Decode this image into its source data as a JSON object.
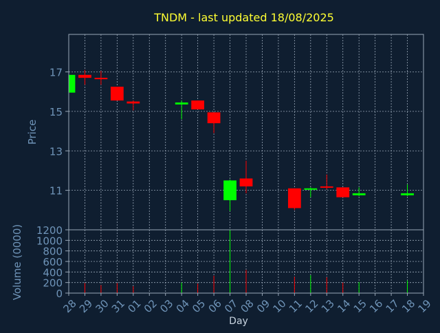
{
  "chart_data": [
    {
      "type": "candlestick",
      "title": "TNDM - last updated 18/08/2025",
      "ylabel": "Price",
      "xlabel": "Day",
      "ylim": [
        9,
        18.9
      ],
      "yticks": [
        11,
        13,
        15,
        17
      ],
      "grid": true,
      "up_color": "#00ff00",
      "down_color": "#ff0000",
      "candles": [
        {
          "day": "28",
          "open": 15.95,
          "high": 16.85,
          "low": 15.95,
          "close": 16.85
        },
        {
          "day": "29",
          "open": 16.85,
          "high": 17.1,
          "low": 16.35,
          "close": 16.7
        },
        {
          "day": "30",
          "open": 16.7,
          "high": 17.05,
          "low": 16.35,
          "close": 16.65
        },
        {
          "day": "31",
          "open": 16.25,
          "high": 16.25,
          "low": 15.55,
          "close": 15.55
        },
        {
          "day": "01",
          "open": 15.5,
          "high": 15.55,
          "low": 15.05,
          "close": 15.4
        },
        {
          "day": "04",
          "open": 15.35,
          "high": 15.55,
          "low": 14.6,
          "close": 15.45
        },
        {
          "day": "05",
          "open": 15.55,
          "high": 15.55,
          "low": 15.1,
          "close": 15.1
        },
        {
          "day": "06",
          "open": 14.95,
          "high": 14.95,
          "low": 13.9,
          "close": 14.4
        },
        {
          "day": "07",
          "open": 10.5,
          "high": 11.55,
          "low": 9.95,
          "close": 11.5
        },
        {
          "day": "08",
          "open": 11.6,
          "high": 12.5,
          "low": 10.85,
          "close": 11.2
        },
        {
          "day": "11",
          "open": 11.1,
          "high": 11.1,
          "low": 10.0,
          "close": 10.1
        },
        {
          "day": "12",
          "open": 11.05,
          "high": 11.15,
          "low": 10.65,
          "close": 11.1
        },
        {
          "day": "13",
          "open": 11.2,
          "high": 11.8,
          "low": 11.05,
          "close": 11.15
        },
        {
          "day": "14",
          "open": 11.15,
          "high": 11.15,
          "low": 10.65,
          "close": 10.65
        },
        {
          "day": "15",
          "open": 10.75,
          "high": 11.15,
          "low": 10.7,
          "close": 10.85
        },
        {
          "day": "18",
          "open": 10.75,
          "high": 11.3,
          "low": 10.7,
          "close": 10.85
        }
      ]
    },
    {
      "type": "bar",
      "ylabel": "Volume (0000)",
      "xlabel": "Day",
      "ylim": [
        0,
        1200
      ],
      "yticks": [
        0,
        200,
        400,
        600,
        800,
        1000,
        1200
      ],
      "grid": true,
      "categories": [
        "28",
        "29",
        "30",
        "31",
        "01",
        "02",
        "03",
        "04",
        "05",
        "06",
        "07",
        "08",
        "09",
        "10",
        "11",
        "12",
        "13",
        "14",
        "15",
        "16",
        "17",
        "18",
        "19"
      ],
      "values": [
        {
          "day": "29",
          "value": 190,
          "color": "#ff0000"
        },
        {
          "day": "30",
          "value": 150,
          "color": "#ff0000"
        },
        {
          "day": "31",
          "value": 190,
          "color": "#ff0000"
        },
        {
          "day": "01",
          "value": 130,
          "color": "#ff0000"
        },
        {
          "day": "04",
          "value": 200,
          "color": "#00ff00"
        },
        {
          "day": "05",
          "value": 180,
          "color": "#ff0000"
        },
        {
          "day": "06",
          "value": 330,
          "color": "#ff0000"
        },
        {
          "day": "07",
          "value": 1200,
          "color": "#00ff00"
        },
        {
          "day": "08",
          "value": 440,
          "color": "#ff0000"
        },
        {
          "day": "11",
          "value": 310,
          "color": "#ff0000"
        },
        {
          "day": "12",
          "value": 340,
          "color": "#00ff00"
        },
        {
          "day": "13",
          "value": 300,
          "color": "#ff0000"
        },
        {
          "day": "14",
          "value": 200,
          "color": "#ff0000"
        },
        {
          "day": "15",
          "value": 210,
          "color": "#00ff00"
        },
        {
          "day": "18",
          "value": 240,
          "color": "#00ff00"
        }
      ]
    }
  ]
}
